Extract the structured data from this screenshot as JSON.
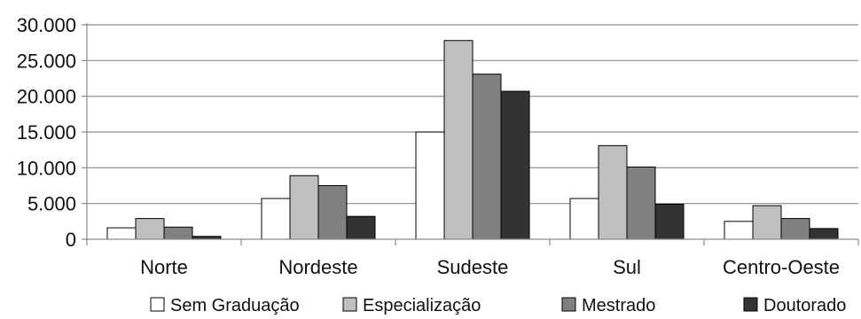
{
  "chart_data": {
    "type": "bar",
    "title": "",
    "xlabel": "",
    "ylabel": "",
    "categories": [
      "Norte",
      "Nordeste",
      "Sudeste",
      "Sul",
      "Centro-Oeste"
    ],
    "series": [
      {
        "name": "Sem Graduação",
        "color": "#ffffff",
        "values": [
          1600,
          5700,
          15000,
          5700,
          2500
        ]
      },
      {
        "name": "Especialização",
        "color": "#bfbfbf",
        "values": [
          2900,
          8900,
          27800,
          13100,
          4700
        ]
      },
      {
        "name": "Mestrado",
        "color": "#808080",
        "values": [
          1700,
          7500,
          23100,
          10100,
          2900
        ]
      },
      {
        "name": "Doutorado",
        "color": "#333333",
        "values": [
          400,
          3200,
          20700,
          4900,
          1500
        ]
      }
    ],
    "ylim": [
      0,
      30000
    ],
    "yticks": [
      0,
      5000,
      10000,
      15000,
      20000,
      25000,
      30000
    ],
    "ytick_labels": [
      "0",
      "5.000",
      "10.000",
      "15.000",
      "20.000",
      "25.000",
      "30.000"
    ],
    "grid": true,
    "legend_position": "bottom"
  }
}
